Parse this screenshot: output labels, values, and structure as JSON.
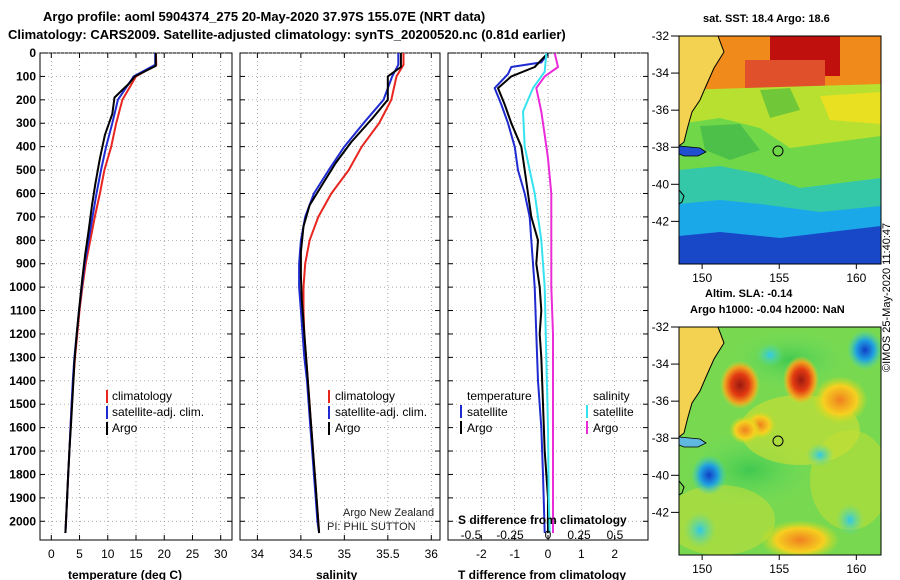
{
  "header": {
    "title_line1": "Argo profile: aoml 5904374_275 20-May-2020 37.97S 155.07E (NRT data)",
    "title_line2": "Climatology: CARS2009. Satellite-adjusted climatology: synTS_20200520.nc (0.81d earlier)"
  },
  "colors": {
    "climatology": "#e8251f",
    "satellite": "#1f2bd0",
    "argo": "#000000",
    "sat_salinity": "#35e3f0",
    "argo_salinity": "#ea2bd8"
  },
  "depth_axis": {
    "ticks": [
      "0",
      "100",
      "200",
      "300",
      "400",
      "500",
      "600",
      "700",
      "800",
      "900",
      "1000",
      "1100",
      "1200",
      "1300",
      "1400",
      "1500",
      "1600",
      "1700",
      "1800",
      "1900",
      "2000"
    ]
  },
  "chart_data": [
    {
      "type": "line",
      "id": "temperature",
      "xlabel": "temperature (deg C)",
      "xlim": [
        -2,
        32
      ],
      "ylim": [
        2080,
        0
      ],
      "xticks": [
        "0",
        "5",
        "10",
        "15",
        "20",
        "25",
        "30"
      ],
      "legend": [
        "climatology",
        "satellite-adj. clim.",
        "Argo"
      ],
      "series": [
        {
          "name": "climatology",
          "color": "#e8251f",
          "points": [
            [
              18.5,
              0
            ],
            [
              18.6,
              50
            ],
            [
              15,
              100
            ],
            [
              13.8,
              150
            ],
            [
              12.6,
              200
            ],
            [
              11.5,
              300
            ],
            [
              10.6,
              400
            ],
            [
              9.4,
              500
            ],
            [
              8.6,
              600
            ],
            [
              7.7,
              700
            ],
            [
              6.9,
              800
            ],
            [
              6.1,
              900
            ],
            [
              5.5,
              1000
            ],
            [
              5,
              1100
            ],
            [
              4.6,
              1200
            ],
            [
              4.2,
              1300
            ],
            [
              3.9,
              1400
            ],
            [
              3.6,
              1500
            ],
            [
              3.4,
              1600
            ],
            [
              3.2,
              1700
            ],
            [
              3,
              1800
            ],
            [
              2.8,
              1900
            ],
            [
              2.6,
              2000
            ],
            [
              2.5,
              2050
            ]
          ]
        },
        {
          "name": "satellite-adj. clim.",
          "color": "#1f2bd0",
          "points": [
            [
              18.4,
              0
            ],
            [
              18.4,
              50
            ],
            [
              14.6,
              100
            ],
            [
              13.2,
              150
            ],
            [
              11.8,
              200
            ],
            [
              10.8,
              300
            ],
            [
              9.7,
              400
            ],
            [
              8.8,
              500
            ],
            [
              8,
              600
            ],
            [
              7.3,
              700
            ],
            [
              6.6,
              800
            ],
            [
              5.9,
              900
            ],
            [
              5.4,
              1000
            ],
            [
              4.9,
              1100
            ],
            [
              4.5,
              1200
            ],
            [
              4.1,
              1300
            ],
            [
              3.8,
              1400
            ],
            [
              3.6,
              1500
            ],
            [
              3.4,
              1600
            ],
            [
              3.2,
              1700
            ],
            [
              3,
              1800
            ],
            [
              2.8,
              1900
            ],
            [
              2.6,
              2000
            ],
            [
              2.5,
              2050
            ]
          ]
        },
        {
          "name": "Argo",
          "color": "#000000",
          "points": [
            [
              18.5,
              0
            ],
            [
              18.5,
              55
            ],
            [
              14.8,
              100
            ],
            [
              13.8,
              130
            ],
            [
              11.2,
              190
            ],
            [
              10.8,
              260
            ],
            [
              9.5,
              350
            ],
            [
              8.6,
              450
            ],
            [
              7.8,
              560
            ],
            [
              7.2,
              650
            ],
            [
              6.6,
              760
            ],
            [
              6,
              860
            ],
            [
              5.5,
              960
            ],
            [
              5,
              1080
            ],
            [
              4.5,
              1200
            ],
            [
              4.1,
              1320
            ],
            [
              3.8,
              1450
            ],
            [
              3.5,
              1580
            ],
            [
              3.2,
              1700
            ],
            [
              3,
              1800
            ],
            [
              2.8,
              1900
            ],
            [
              2.6,
              2000
            ],
            [
              2.5,
              2050
            ]
          ]
        }
      ]
    },
    {
      "type": "line",
      "id": "salinity",
      "xlabel": "salinity",
      "xlim": [
        33.8,
        36.1
      ],
      "ylim": [
        2080,
        0
      ],
      "xticks": [
        "34",
        "34.5",
        "35",
        "35.5",
        "36"
      ],
      "legend": [
        "climatology",
        "satellite-adj. clim.",
        "Argo"
      ],
      "annotations": [
        "Argo New Zealand",
        "PI: PHIL SUTTON"
      ],
      "series": [
        {
          "name": "climatology",
          "color": "#e8251f",
          "points": [
            [
              35.68,
              0
            ],
            [
              35.68,
              50
            ],
            [
              35.6,
              100
            ],
            [
              35.54,
              200
            ],
            [
              35.4,
              300
            ],
            [
              35.2,
              400
            ],
            [
              35.05,
              500
            ],
            [
              34.85,
              600
            ],
            [
              34.7,
              700
            ],
            [
              34.6,
              800
            ],
            [
              34.55,
              900
            ],
            [
              34.53,
              1000
            ],
            [
              34.53,
              1100
            ],
            [
              34.54,
              1200
            ],
            [
              34.56,
              1300
            ],
            [
              34.58,
              1400
            ],
            [
              34.6,
              1500
            ],
            [
              34.62,
              1600
            ],
            [
              34.64,
              1700
            ],
            [
              34.66,
              1800
            ],
            [
              34.68,
              1900
            ],
            [
              34.7,
              2000
            ],
            [
              34.71,
              2050
            ]
          ]
        },
        {
          "name": "satellite-adj. clim.",
          "color": "#1f2bd0",
          "points": [
            [
              35.62,
              0
            ],
            [
              35.62,
              50
            ],
            [
              35.55,
              100
            ],
            [
              35.45,
              200
            ],
            [
              35.22,
              300
            ],
            [
              35,
              400
            ],
            [
              34.82,
              500
            ],
            [
              34.65,
              600
            ],
            [
              34.55,
              700
            ],
            [
              34.5,
              800
            ],
            [
              34.48,
              900
            ],
            [
              34.48,
              1000
            ],
            [
              34.5,
              1100
            ],
            [
              34.52,
              1200
            ],
            [
              34.54,
              1300
            ],
            [
              34.57,
              1400
            ],
            [
              34.59,
              1500
            ],
            [
              34.61,
              1600
            ],
            [
              34.63,
              1700
            ],
            [
              34.65,
              1800
            ],
            [
              34.67,
              1900
            ],
            [
              34.69,
              2000
            ],
            [
              34.71,
              2050
            ]
          ]
        },
        {
          "name": "Argo",
          "color": "#000000",
          "points": [
            [
              35.65,
              0
            ],
            [
              35.65,
              60
            ],
            [
              35.5,
              100
            ],
            [
              35.5,
              200
            ],
            [
              35.32,
              280
            ],
            [
              35.08,
              380
            ],
            [
              34.9,
              470
            ],
            [
              34.75,
              560
            ],
            [
              34.6,
              650
            ],
            [
              34.53,
              740
            ],
            [
              34.5,
              850
            ],
            [
              34.5,
              950
            ],
            [
              34.51,
              1050
            ],
            [
              34.53,
              1150
            ],
            [
              34.55,
              1250
            ],
            [
              34.57,
              1350
            ],
            [
              34.59,
              1450
            ],
            [
              34.61,
              1550
            ],
            [
              34.63,
              1650
            ],
            [
              34.65,
              1750
            ],
            [
              34.67,
              1850
            ],
            [
              34.69,
              1950
            ],
            [
              34.71,
              2050
            ]
          ]
        }
      ]
    },
    {
      "type": "line",
      "id": "difference",
      "xlabel": "T difference from climatology",
      "xlabel_top": "S difference from climatology",
      "xlim": [
        -3,
        3
      ],
      "ylim": [
        2080,
        0
      ],
      "xticks": [
        "-2",
        "-1",
        "0",
        "1",
        "2"
      ],
      "xticks_top": [
        "-0.5",
        "-0.25",
        "0",
        "0.25",
        "0.5"
      ],
      "legend_temperature": {
        "title": "temperature",
        "items": [
          "satellite",
          "Argo"
        ]
      },
      "legend_salinity": {
        "title": "salinity",
        "items": [
          "satellite",
          "Argo"
        ]
      },
      "series": [
        {
          "name": "T satellite",
          "color": "#1f2bd0",
          "points": [
            [
              0,
              0
            ],
            [
              -0.2,
              40
            ],
            [
              -1.1,
              60
            ],
            [
              -1.2,
              90
            ],
            [
              -1.6,
              150
            ],
            [
              -1.4,
              220
            ],
            [
              -1.2,
              300
            ],
            [
              -1,
              400
            ],
            [
              -0.9,
              500
            ],
            [
              -0.7,
              600
            ],
            [
              -0.55,
              700
            ],
            [
              -0.5,
              800
            ],
            [
              -0.45,
              900
            ],
            [
              -0.4,
              1000
            ],
            [
              -0.35,
              1200
            ],
            [
              -0.3,
              1400
            ],
            [
              -0.2,
              1600
            ],
            [
              -0.15,
              1800
            ],
            [
              -0.1,
              2050
            ]
          ]
        },
        {
          "name": "T Argo",
          "color": "#000000",
          "points": [
            [
              0,
              0
            ],
            [
              -0.4,
              60
            ],
            [
              -1.1,
              100
            ],
            [
              -1.5,
              150
            ],
            [
              -1.3,
              220
            ],
            [
              -1.1,
              300
            ],
            [
              -0.8,
              400
            ],
            [
              -0.7,
              500
            ],
            [
              -0.6,
              600
            ],
            [
              -0.5,
              700
            ],
            [
              -0.3,
              800
            ],
            [
              -0.35,
              900
            ],
            [
              -0.25,
              1000
            ],
            [
              -0.2,
              1100
            ],
            [
              -0.25,
              1200
            ],
            [
              -0.2,
              1300
            ],
            [
              -0.15,
              1500
            ],
            [
              -0.1,
              1700
            ],
            [
              0,
              1900
            ],
            [
              0,
              2050
            ]
          ]
        },
        {
          "name": "S satellite",
          "color": "#35e3f0",
          "points": [
            [
              -0.05,
              0
            ],
            [
              -0.1,
              80
            ],
            [
              -0.45,
              150
            ],
            [
              -0.75,
              250
            ],
            [
              -0.7,
              400
            ],
            [
              -0.4,
              600
            ],
            [
              -0.2,
              800
            ],
            [
              -0.1,
              1000
            ],
            [
              -0.05,
              1300
            ],
            [
              0,
              1600
            ],
            [
              0.02,
              1900
            ],
            [
              0.05,
              2050
            ]
          ]
        },
        {
          "name": "S Argo",
          "color": "#ea2bd8",
          "points": [
            [
              0.2,
              0
            ],
            [
              0.3,
              60
            ],
            [
              -0.1,
              100
            ],
            [
              -0.35,
              150
            ],
            [
              -0.2,
              250
            ],
            [
              -0.1,
              350
            ],
            [
              0,
              450
            ],
            [
              0.1,
              600
            ],
            [
              0.1,
              800
            ],
            [
              0.1,
              1000
            ],
            [
              0.15,
              1200
            ],
            [
              0.15,
              1500
            ],
            [
              0.15,
              1800
            ],
            [
              0.15,
              2050
            ]
          ]
        }
      ]
    }
  ],
  "maps": {
    "sst": {
      "title": "sat. SST: 18.4 Argo: 18.6",
      "lat_ticks": [
        "-32",
        "-34",
        "-36",
        "-38",
        "-40",
        "-42"
      ],
      "lon_ticks": [
        "150",
        "155",
        "160"
      ]
    },
    "sla": {
      "title_line1": "Altim. SLA: -0.14",
      "title_line2": "Argo h1000: -0.04 h2000: NaN",
      "lat_ticks": [
        "-32",
        "-34",
        "-36",
        "-38",
        "-40",
        "-42"
      ],
      "lon_ticks": [
        "150",
        "155",
        "160"
      ]
    }
  },
  "footer": {
    "credit": "©IMOS 25-May-2020 11:40:47"
  }
}
